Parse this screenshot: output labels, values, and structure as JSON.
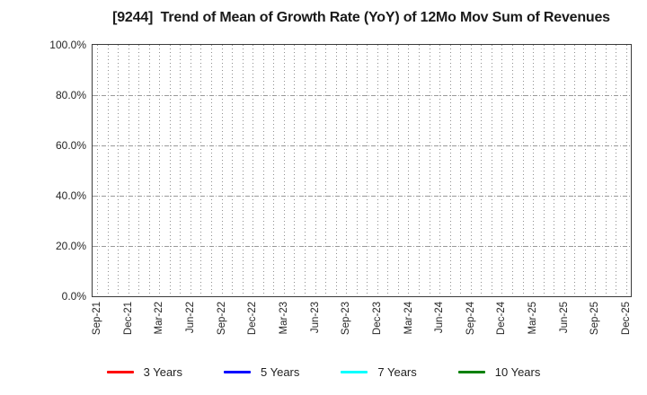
{
  "chart_data": {
    "type": "line",
    "title": "[9244]  Trend of Mean of Growth Rate (YoY) of 12Mo Mov Sum of Revenues",
    "xlabel": "",
    "ylabel": "",
    "ylim": [
      0,
      100
    ],
    "y_major_step_pct": 20,
    "y_tick_labels": [
      "0.0%",
      "20.0%",
      "40.0%",
      "60.0%",
      "80.0%",
      "100.0%"
    ],
    "x_tick_labels": [
      "Sep-21",
      "Dec-21",
      "Mar-22",
      "Jun-22",
      "Sep-22",
      "Dec-22",
      "Mar-23",
      "Jun-23",
      "Sep-23",
      "Dec-23",
      "Mar-24",
      "Jun-24",
      "Sep-24",
      "Dec-24",
      "Mar-25",
      "Jun-25",
      "Sep-25",
      "Dec-25"
    ],
    "x_minor_gridlines_per_major": 3,
    "grid": true,
    "legend_position": "bottom",
    "series": [
      {
        "name": "3 Years",
        "color": "#ff0000",
        "x": [],
        "values": []
      },
      {
        "name": "5 Years",
        "color": "#0000ff",
        "x": [],
        "values": []
      },
      {
        "name": "7 Years",
        "color": "#00ffff",
        "x": [],
        "values": []
      },
      {
        "name": "10 Years",
        "color": "#008000",
        "x": [],
        "values": []
      }
    ]
  }
}
